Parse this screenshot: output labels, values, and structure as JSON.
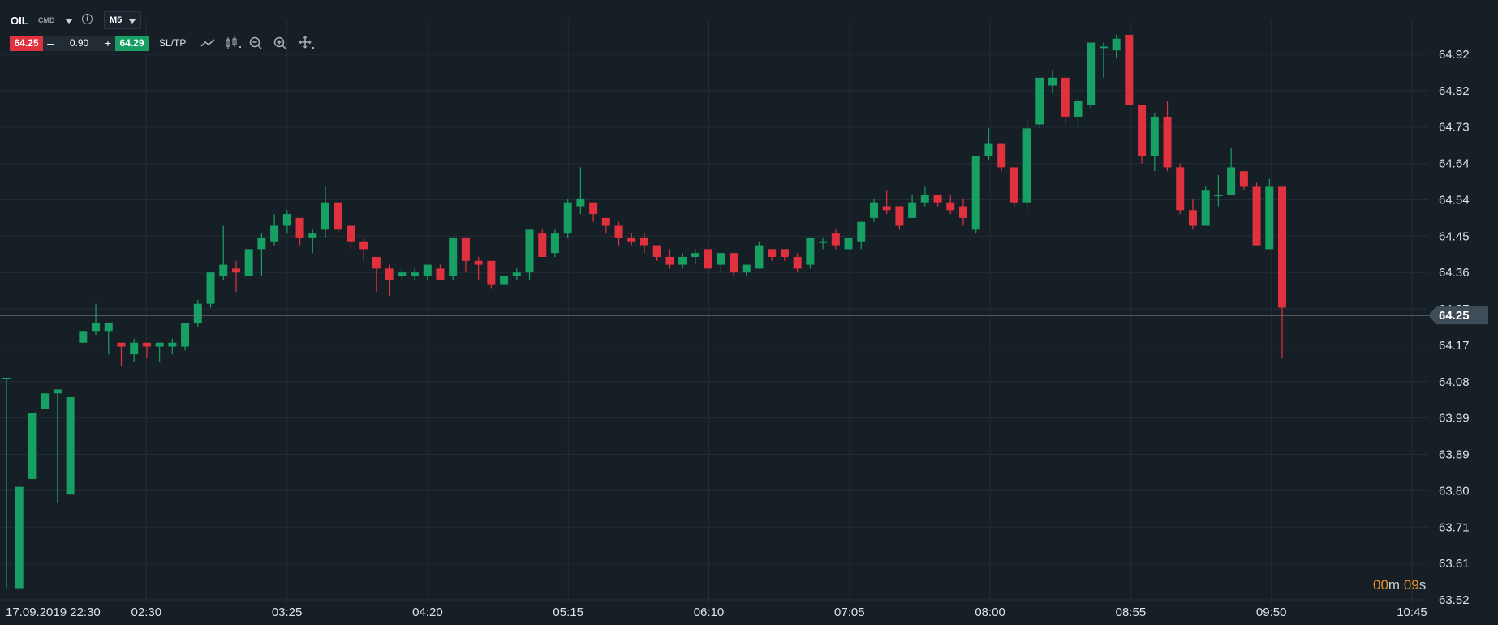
{
  "header": {
    "symbol": "OIL",
    "symbol_type": "CMD",
    "info_icon": "info-icon",
    "timeframe": "M5"
  },
  "trade": {
    "sell_price": "64.25",
    "minus": "–",
    "volume": "0.90",
    "plus": "+",
    "buy_price": "64.29",
    "sltp_label": "SL/TP"
  },
  "tools": [
    "line-chart-icon",
    "candlestick-icon",
    "zoom-out-icon",
    "zoom-in-icon",
    "move-icon"
  ],
  "timer": {
    "minutes": "00",
    "m": "m",
    "seconds": "09",
    "s": "s"
  },
  "colors": {
    "background": "#171f26",
    "up": "#17a063",
    "down": "#e0323e",
    "grid": "#222d35",
    "timer": "#e8912a"
  },
  "chart_data": {
    "type": "candlestick",
    "symbol": "OIL",
    "timeframe": "M5",
    "y_ticks": [
      "64.92",
      "64.82",
      "64.73",
      "64.64",
      "64.54",
      "64.45",
      "64.36",
      "64.27",
      "64.17",
      "64.08",
      "63.99",
      "63.89",
      "63.80",
      "63.71",
      "63.61",
      "63.52"
    ],
    "x_ticks": [
      "17.09.2019 22:30",
      "02:30",
      "03:25",
      "04:20",
      "05:15",
      "06:10",
      "07:05",
      "08:00",
      "08:55",
      "09:50",
      "10:45"
    ],
    "current_price": "64.25",
    "ylim": [
      63.52,
      64.92
    ],
    "candles": [
      [
        64.09,
        64.09,
        63.53,
        63.55
      ],
      [
        63.55,
        63.81,
        63.55,
        63.83
      ],
      [
        63.83,
        64.0,
        63.82,
        64.01
      ],
      [
        64.01,
        64.05,
        63.98,
        64.05
      ],
      [
        64.05,
        64.06,
        63.78,
        63.77
      ],
      [
        63.79,
        64.04,
        63.79,
        64.09
      ],
      [
        64.18,
        64.21,
        64.15,
        64.22
      ],
      [
        64.21,
        64.23,
        64.28,
        64.2
      ],
      [
        64.21,
        64.23,
        64.16,
        64.15
      ],
      [
        64.18,
        64.17,
        64.14,
        64.12
      ],
      [
        64.15,
        64.18,
        64.19,
        64.13
      ],
      [
        64.18,
        64.17,
        64.15,
        64.14
      ],
      [
        64.17,
        64.18,
        64.17,
        64.13
      ],
      [
        64.17,
        64.18,
        64.19,
        64.15
      ],
      [
        64.17,
        64.23,
        64.23,
        64.16
      ],
      [
        64.23,
        64.28,
        64.29,
        64.22
      ],
      [
        64.28,
        64.36,
        64.36,
        64.27
      ],
      [
        64.35,
        64.38,
        64.48,
        64.34
      ],
      [
        64.37,
        64.36,
        64.39,
        64.31
      ],
      [
        64.35,
        64.42,
        64.42,
        64.35
      ],
      [
        64.42,
        64.45,
        64.46,
        64.35
      ],
      [
        64.44,
        64.48,
        64.51,
        64.43
      ],
      [
        64.48,
        64.51,
        64.52,
        64.46
      ],
      [
        64.5,
        64.45,
        64.5,
        64.43
      ],
      [
        64.45,
        64.46,
        64.47,
        64.41
      ],
      [
        64.47,
        64.54,
        64.58,
        64.45
      ],
      [
        64.54,
        64.47,
        64.54,
        64.46
      ],
      [
        64.48,
        64.44,
        64.48,
        64.42
      ],
      [
        64.44,
        64.42,
        64.45,
        64.39
      ],
      [
        64.4,
        64.37,
        64.4,
        64.31
      ],
      [
        64.37,
        64.34,
        64.38,
        64.3
      ],
      [
        64.35,
        64.36,
        64.37,
        64.34
      ],
      [
        64.35,
        64.36,
        64.37,
        64.34
      ],
      [
        64.35,
        64.38,
        64.38,
        64.34
      ],
      [
        64.37,
        64.34,
        64.38,
        64.34
      ],
      [
        64.35,
        64.45,
        64.45,
        64.34
      ],
      [
        64.45,
        64.39,
        64.45,
        64.36
      ],
      [
        64.39,
        64.38,
        64.4,
        64.34
      ],
      [
        64.39,
        64.33,
        64.39,
        64.32
      ],
      [
        64.33,
        64.35,
        64.35,
        64.33
      ],
      [
        64.35,
        64.36,
        64.37,
        64.34
      ],
      [
        64.36,
        64.47,
        64.47,
        64.34
      ],
      [
        64.46,
        64.4,
        64.47,
        64.4
      ],
      [
        64.41,
        64.46,
        64.47,
        64.4
      ],
      [
        64.46,
        64.54,
        64.55,
        64.45
      ],
      [
        64.53,
        64.55,
        64.63,
        64.51
      ],
      [
        64.54,
        64.51,
        64.54,
        64.49
      ],
      [
        64.5,
        64.48,
        64.5,
        64.46
      ],
      [
        64.48,
        64.45,
        64.49,
        64.43
      ],
      [
        64.45,
        64.44,
        64.46,
        64.43
      ],
      [
        64.45,
        64.43,
        64.46,
        64.41
      ],
      [
        64.43,
        64.4,
        64.43,
        64.39
      ],
      [
        64.4,
        64.38,
        64.42,
        64.37
      ],
      [
        64.38,
        64.4,
        64.41,
        64.37
      ],
      [
        64.4,
        64.41,
        64.42,
        64.38
      ],
      [
        64.42,
        64.37,
        64.42,
        64.36
      ],
      [
        64.38,
        64.41,
        64.41,
        64.36
      ],
      [
        64.41,
        64.36,
        64.41,
        64.35
      ],
      [
        64.36,
        64.38,
        64.38,
        64.35
      ],
      [
        64.37,
        64.43,
        64.44,
        64.37
      ],
      [
        64.42,
        64.4,
        64.42,
        64.39
      ],
      [
        64.42,
        64.4,
        64.42,
        64.39
      ],
      [
        64.4,
        64.37,
        64.41,
        64.36
      ],
      [
        64.38,
        64.45,
        64.45,
        64.37
      ],
      [
        64.44,
        64.44,
        64.45,
        64.42
      ],
      [
        64.46,
        64.43,
        64.47,
        64.42
      ],
      [
        64.42,
        64.45,
        64.45,
        64.42
      ],
      [
        64.44,
        64.49,
        64.49,
        64.42
      ],
      [
        64.5,
        64.54,
        64.55,
        64.49
      ],
      [
        64.53,
        64.52,
        64.57,
        64.51
      ],
      [
        64.53,
        64.48,
        64.53,
        64.47
      ],
      [
        64.5,
        64.54,
        64.56,
        64.5
      ],
      [
        64.54,
        64.56,
        64.58,
        64.53
      ],
      [
        64.56,
        64.54,
        64.56,
        64.53
      ],
      [
        64.54,
        64.52,
        64.56,
        64.51
      ],
      [
        64.53,
        64.5,
        64.55,
        64.48
      ],
      [
        64.47,
        64.66,
        64.66,
        64.46
      ],
      [
        64.66,
        64.69,
        64.73,
        64.65
      ],
      [
        64.69,
        64.63,
        64.69,
        64.62
      ],
      [
        64.63,
        64.54,
        64.63,
        64.53
      ],
      [
        64.54,
        64.73,
        64.75,
        64.52
      ],
      [
        64.74,
        64.86,
        64.86,
        64.73
      ],
      [
        64.84,
        64.86,
        64.88,
        64.82
      ],
      [
        64.86,
        64.76,
        64.86,
        64.74
      ],
      [
        64.76,
        64.8,
        64.81,
        64.73
      ],
      [
        64.79,
        64.95,
        64.95,
        64.78
      ],
      [
        64.94,
        64.94,
        64.95,
        64.86
      ],
      [
        64.93,
        64.96,
        64.97,
        64.91
      ],
      [
        64.97,
        64.79,
        64.97,
        64.79
      ],
      [
        64.79,
        64.66,
        64.79,
        64.64
      ],
      [
        64.66,
        64.76,
        64.77,
        64.62
      ],
      [
        64.76,
        64.63,
        64.8,
        64.62
      ],
      [
        64.63,
        64.52,
        64.64,
        64.51
      ],
      [
        64.52,
        64.48,
        64.55,
        64.47
      ],
      [
        64.48,
        64.57,
        64.58,
        64.48
      ],
      [
        64.56,
        64.56,
        64.61,
        64.53
      ],
      [
        64.56,
        64.63,
        64.68,
        64.56
      ],
      [
        64.62,
        64.58,
        64.62,
        64.57
      ],
      [
        64.58,
        64.43,
        64.59,
        64.43
      ],
      [
        64.42,
        64.58,
        64.6,
        64.42
      ],
      [
        64.58,
        64.27,
        64.58,
        64.14
      ]
    ]
  }
}
